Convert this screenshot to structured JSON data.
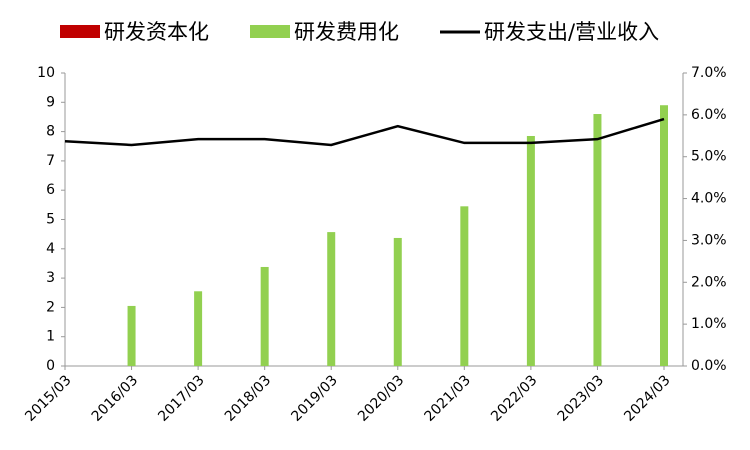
{
  "chart_data": {
    "type": "bar_line",
    "categories": [
      "2015/03",
      "2016/03",
      "2017/03",
      "2018/03",
      "2019/03",
      "2020/03",
      "2021/03",
      "2022/03",
      "2023/03",
      "2024/03"
    ],
    "series": [
      {
        "name": "研发资本化",
        "color": "#c00000",
        "type": "bar",
        "values": [
          null,
          null,
          null,
          null,
          null,
          null,
          null,
          null,
          null,
          null
        ]
      },
      {
        "name": "研发费用化",
        "color": "#92d050",
        "type": "bar",
        "values": [
          null,
          2.05,
          2.55,
          3.38,
          4.57,
          4.37,
          5.45,
          7.85,
          8.6,
          8.9
        ]
      },
      {
        "name": "研发支出/营业收入",
        "color": "#000000",
        "type": "line",
        "axis": "y2",
        "values": [
          5.37,
          5.28,
          5.42,
          5.42,
          5.28,
          5.73,
          5.33,
          5.33,
          5.42,
          5.9
        ]
      }
    ],
    "ylim": [
      0,
      10
    ],
    "yticks": [
      0,
      1,
      2,
      3,
      4,
      5,
      6,
      7,
      8,
      9,
      10
    ],
    "y2lim": [
      0,
      7
    ],
    "y2ticks": [
      {
        "value": 0,
        "label": "0.0%"
      },
      {
        "value": 1,
        "label": "1.0%"
      },
      {
        "value": 2,
        "label": "2.0%"
      },
      {
        "value": 3,
        "label": "3.0%"
      },
      {
        "value": 4,
        "label": "4.0%"
      },
      {
        "value": 5,
        "label": "5.0%"
      },
      {
        "value": 6,
        "label": "6.0%"
      },
      {
        "value": 7,
        "label": "7.0%"
      }
    ],
    "grid": false
  }
}
